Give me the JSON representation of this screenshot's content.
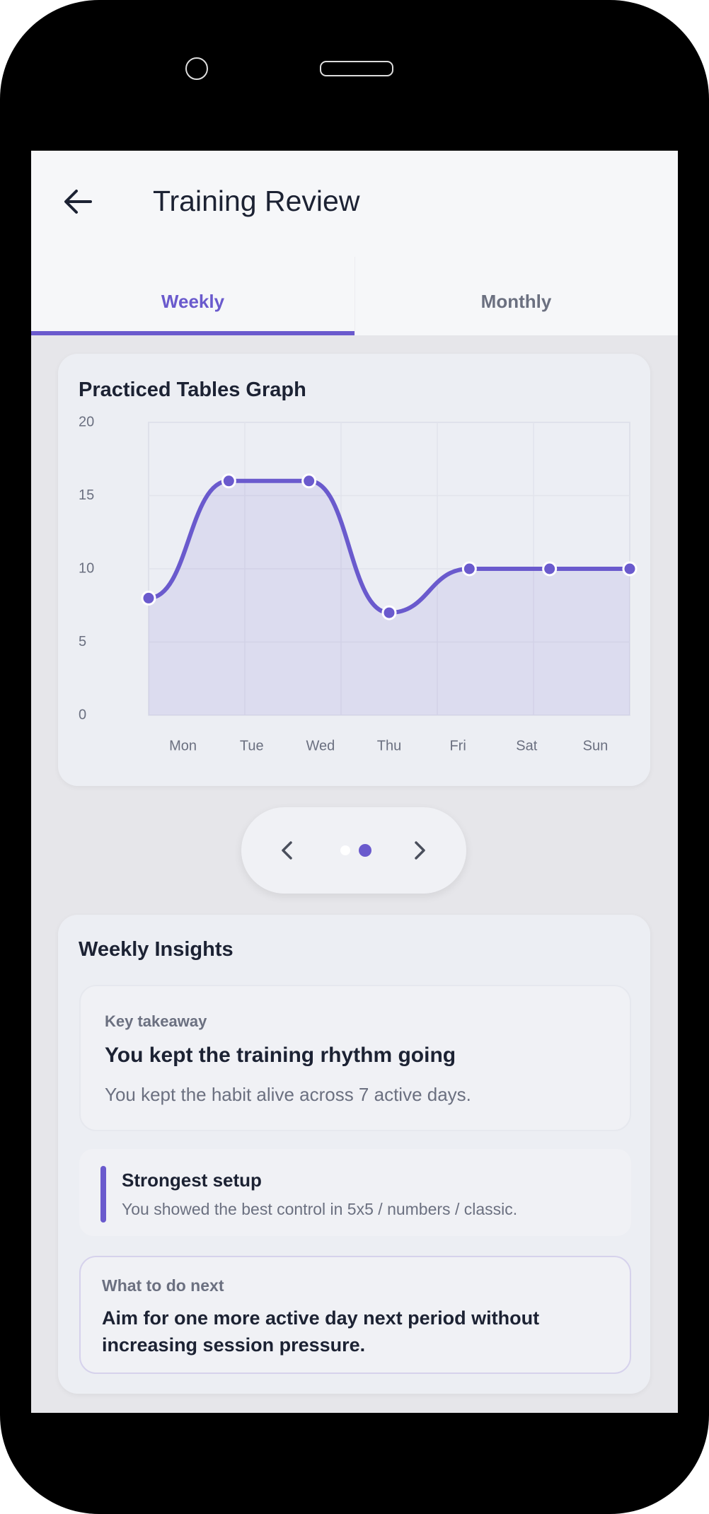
{
  "header": {
    "title": "Training Review"
  },
  "tabs": [
    "Weekly",
    "Monthly"
  ],
  "chart_data": {
    "type": "line",
    "title": "Practiced Tables Graph",
    "categories": [
      "Mon",
      "Tue",
      "Wed",
      "Thu",
      "Fri",
      "Sat",
      "Sun"
    ],
    "values": [
      8,
      16,
      16,
      7,
      10,
      10,
      10
    ],
    "color": "#6a5acd",
    "ylim": [
      0,
      20
    ],
    "yticks": [
      0,
      5,
      10,
      15,
      20
    ],
    "grid": true
  },
  "insights": {
    "title": "Weekly Insights",
    "key_takeaway": {
      "label": "Key takeaway",
      "heading": "You kept the training rhythm going",
      "text": "You kept the habit alive across 7 active days."
    },
    "strongest": {
      "title": "Strongest setup",
      "text": "You showed the best control in 5x5 / numbers / classic."
    },
    "next": {
      "label": "What to do next",
      "text": "Aim for one more active day next period without increasing session pressure."
    }
  }
}
